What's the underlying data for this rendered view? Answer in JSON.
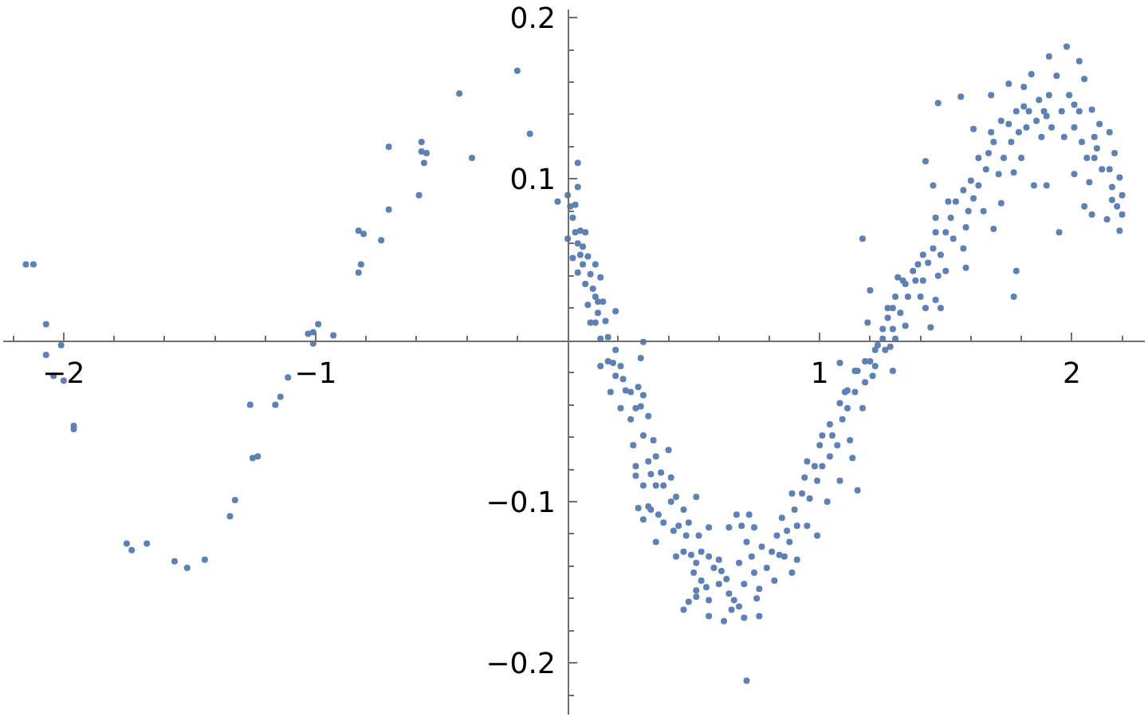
{
  "chart_data": {
    "type": "scatter",
    "color": "#5e81b5",
    "marker": "circle",
    "grid": false,
    "xlim": [
      -2.24,
      2.29
    ],
    "ylim": [
      -0.232,
      0.205
    ],
    "xticks": [
      {
        "value": -2.2,
        "label": null
      },
      {
        "value": -2,
        "label": "−2"
      },
      {
        "value": -1.8,
        "label": null
      },
      {
        "value": -1.6,
        "label": null
      },
      {
        "value": -1.4,
        "label": null
      },
      {
        "value": -1.2,
        "label": null
      },
      {
        "value": -1,
        "label": "−1"
      },
      {
        "value": -0.8,
        "label": null
      },
      {
        "value": -0.6,
        "label": null
      },
      {
        "value": -0.4,
        "label": null
      },
      {
        "value": -0.2,
        "label": null
      },
      {
        "value": 0.2,
        "label": null
      },
      {
        "value": 0.4,
        "label": null
      },
      {
        "value": 0.6,
        "label": null
      },
      {
        "value": 0.8,
        "label": null
      },
      1,
      {
        "value": 1.2,
        "label": null
      },
      {
        "value": 1.4,
        "label": null
      },
      {
        "value": 1.6,
        "label": null
      },
      {
        "value": 1.8,
        "label": null
      },
      2,
      {
        "value": 2.2,
        "label": null
      }
    ],
    "yticks": [
      {
        "value": -0.22,
        "label": null
      },
      {
        "value": -0.2,
        "label": "−0.2"
      },
      {
        "value": -0.18,
        "label": null
      },
      {
        "value": -0.16,
        "label": null
      },
      {
        "value": -0.14,
        "label": null
      },
      {
        "value": -0.12,
        "label": null
      },
      {
        "value": -0.1,
        "label": "−0.1"
      },
      {
        "value": -0.08,
        "label": null
      },
      {
        "value": -0.06,
        "label": null
      },
      {
        "value": -0.04,
        "label": null
      },
      {
        "value": -0.02,
        "label": null
      },
      {
        "value": 0.02,
        "label": null
      },
      {
        "value": 0.04,
        "label": null
      },
      {
        "value": 0.06,
        "label": null
      },
      {
        "value": 0.08,
        "label": null
      },
      0.1,
      {
        "value": 0.12,
        "label": null
      },
      {
        "value": 0.14,
        "label": null
      },
      {
        "value": 0.16,
        "label": null
      },
      {
        "value": 0.18,
        "label": null
      },
      0.2
    ],
    "x": [
      -2.15,
      -2.12,
      -2.07,
      -2.07,
      -2.01,
      -2.04,
      -2.0,
      -1.96,
      -1.96,
      -1.75,
      -1.73,
      -1.67,
      -1.56,
      -1.51,
      -1.44,
      -1.34,
      -1.32,
      -1.25,
      -1.23,
      -1.26,
      -1.16,
      -1.14,
      -1.11,
      -1.03,
      -1.01,
      -0.99,
      -1.01,
      -0.93,
      -0.83,
      -0.81,
      -0.74,
      -0.82,
      -0.83,
      -0.2,
      -0.43,
      -0.15,
      -0.71,
      -0.58,
      -0.58,
      -0.56,
      -0.57,
      -0.38,
      -0.59,
      -0.71,
      -0.04,
      0.0,
      0.04,
      0.04,
      0.01,
      0.03,
      0.02,
      0.0,
      0.03,
      0.05,
      0.07,
      0.04,
      0.06,
      0.02,
      0.05,
      0.08,
      0.04,
      0.09,
      0.11,
      0.13,
      0.07,
      0.1,
      0.08,
      0.12,
      0.14,
      0.09,
      0.11,
      0.15,
      0.19,
      0.13,
      0.16,
      0.3,
      0.19,
      0.29,
      0.13,
      0.16,
      0.18,
      0.21,
      0.19,
      0.17,
      0.22,
      0.23,
      0.21,
      0.25,
      0.28,
      0.3,
      0.29,
      0.25,
      0.27,
      0.32,
      0.26,
      0.3,
      0.34,
      0.4,
      0.27,
      0.32,
      0.35,
      0.27,
      0.33,
      0.37,
      0.3,
      0.35,
      0.38,
      0.28,
      0.3,
      0.32,
      0.35,
      0.36,
      0.41,
      0.43,
      0.46,
      0.42,
      0.44,
      0.48,
      0.51,
      0.43,
      0.46,
      0.49,
      0.53,
      0.56,
      0.51,
      0.56,
      0.58,
      0.5,
      0.53,
      0.55,
      0.51,
      0.46,
      0.48,
      0.51,
      0.56,
      0.56,
      0.62,
      0.61,
      0.63,
      0.64,
      0.67,
      0.64,
      0.66,
      0.68,
      0.65,
      0.7,
      0.71,
      0.7,
      0.72,
      0.69,
      0.71,
      0.73,
      0.74,
      0.76,
      0.75,
      0.76,
      0.74,
      0.77,
      0.81,
      0.82,
      0.83,
      0.85,
      0.86,
      0.87,
      0.89,
      0.9,
      0.91,
      0.91,
      0.93,
      0.95,
      0.96,
      0.99,
      0.99,
      0.95,
      1.01,
      1.0,
      1.03,
      1.04,
      1.05,
      1.07,
      1.08,
      1.09,
      1.11,
      1.1,
      1.08,
      1.12,
      1.13,
      1.15,
      1.14,
      1.15,
      1.17,
      1.17,
      1.18,
      1.19,
      1.2,
      1.2,
      1.21,
      1.22,
      1.23,
      1.25,
      1.26,
      1.28,
      1.29,
      1.3,
      1.29,
      1.27,
      1.29,
      1.3,
      1.32,
      1.31,
      1.34,
      1.35,
      1.34,
      1.38,
      1.39,
      1.4,
      1.42,
      1.44,
      1.41,
      1.43,
      1.42,
      1.45,
      1.46,
      1.47,
      1.48,
      1.46,
      1.45,
      1.48,
      1.5,
      1.5,
      1.52,
      1.53,
      1.54,
      1.57,
      1.58,
      1.58,
      1.59,
      1.56,
      1.47,
      1.61,
      1.6,
      1.63,
      1.65,
      1.66,
      1.67,
      1.61,
      1.68,
      1.69,
      1.69,
      1.71,
      1.72,
      1.73,
      1.75,
      1.75,
      1.76,
      1.77,
      1.77,
      1.78,
      1.78,
      1.79,
      1.8,
      1.81,
      1.82,
      1.83,
      1.84,
      1.85,
      1.86,
      1.87,
      1.88,
      1.89,
      1.9,
      1.91,
      1.91,
      1.92,
      1.94,
      1.95,
      1.96,
      1.97,
      1.98,
      1.99,
      2.01,
      2.01,
      2.03,
      2.03,
      2.04,
      2.05,
      2.05,
      2.06,
      2.07,
      2.08,
      2.08,
      2.09,
      2.1,
      2.11,
      2.12,
      2.14,
      2.15,
      2.15,
      2.16,
      2.17,
      2.18,
      2.19,
      2.19,
      2.2,
      2.2,
      0.41,
      0.33,
      0.38,
      0.47,
      0.52,
      0.6,
      0.6,
      0.68,
      0.79,
      0.84,
      0.88,
      0.89,
      0.94,
      0.98,
      1.01,
      1.04,
      1.08,
      1.11,
      1.14,
      1.18,
      1.22,
      1.25,
      1.27,
      1.33,
      1.37,
      1.41,
      1.46,
      1.51,
      1.57,
      1.63,
      1.68,
      1.72,
      1.81,
      1.9,
      2.01,
      2.09,
      2.16,
      0.06,
      0.11,
      0.12
    ],
    "values": [
      0.047,
      0.047,
      0.01,
      -0.009,
      -0.003,
      -0.022,
      -0.025,
      -0.053,
      -0.055,
      -0.126,
      -0.13,
      -0.126,
      -0.137,
      -0.141,
      -0.136,
      -0.109,
      -0.099,
      -0.073,
      -0.072,
      -0.04,
      -0.04,
      -0.035,
      -0.023,
      0.004,
      0.005,
      0.01,
      -0.002,
      0.003,
      0.068,
      0.066,
      0.062,
      0.047,
      0.042,
      0.167,
      0.153,
      0.128,
      0.12,
      0.123,
      0.117,
      0.116,
      0.11,
      0.113,
      0.09,
      0.081,
      0.086,
      0.09,
      0.11,
      0.095,
      0.083,
      0.084,
      0.076,
      0.063,
      0.067,
      0.068,
      0.067,
      0.06,
      0.058,
      0.051,
      0.053,
      0.052,
      0.042,
      0.041,
      0.047,
      0.039,
      0.035,
      0.032,
      0.022,
      0.024,
      0.024,
      0.011,
      0.011,
      0.012,
      0.018,
      0.001,
      0.002,
      -0.001,
      -0.006,
      -0.011,
      -0.016,
      -0.013,
      -0.014,
      -0.016,
      -0.022,
      -0.032,
      -0.024,
      -0.031,
      -0.042,
      -0.032,
      -0.029,
      -0.034,
      -0.041,
      -0.049,
      -0.042,
      -0.047,
      -0.065,
      -0.059,
      -0.062,
      -0.068,
      -0.078,
      -0.075,
      -0.072,
      -0.084,
      -0.083,
      -0.082,
      -0.09,
      -0.09,
      -0.09,
      -0.104,
      -0.111,
      -0.103,
      -0.125,
      -0.108,
      -0.1,
      -0.097,
      -0.105,
      -0.118,
      -0.115,
      -0.113,
      -0.097,
      -0.134,
      -0.131,
      -0.133,
      -0.131,
      -0.116,
      -0.138,
      -0.134,
      -0.141,
      -0.144,
      -0.149,
      -0.153,
      -0.155,
      -0.167,
      -0.162,
      -0.159,
      -0.161,
      -0.171,
      -0.174,
      -0.143,
      -0.148,
      -0.116,
      -0.108,
      -0.157,
      -0.161,
      -0.165,
      -0.167,
      -0.172,
      -0.211,
      -0.151,
      -0.108,
      -0.115,
      -0.125,
      -0.134,
      -0.144,
      -0.171,
      -0.16,
      -0.154,
      -0.116,
      -0.128,
      -0.131,
      -0.149,
      -0.121,
      -0.11,
      -0.134,
      -0.118,
      -0.144,
      -0.105,
      -0.115,
      -0.136,
      -0.095,
      -0.115,
      -0.098,
      -0.121,
      -0.087,
      -0.075,
      -0.078,
      -0.065,
      -0.1,
      -0.072,
      -0.059,
      -0.065,
      -0.087,
      -0.049,
      -0.042,
      -0.032,
      -0.014,
      -0.062,
      -0.073,
      -0.093,
      -0.032,
      -0.019,
      -0.042,
      0.063,
      -0.026,
      0.011,
      0.031,
      -0.013,
      -0.022,
      -0.016,
      -0.003,
      0.001,
      -0.006,
      -0.004,
      -0.019,
      0.001,
      0.007,
      0.014,
      0.02,
      0.027,
      0.017,
      0.039,
      0.009,
      0.027,
      0.035,
      0.037,
      0.047,
      0.027,
      0.02,
      0.008,
      0.037,
      0.048,
      0.111,
      0.096,
      0.025,
      0.04,
      0.02,
      0.067,
      0.057,
      0.053,
      0.043,
      0.067,
      0.076,
      0.063,
      0.086,
      0.057,
      0.07,
      0.045,
      0.08,
      0.151,
      0.147,
      0.088,
      0.099,
      0.096,
      0.08,
      0.106,
      0.116,
      0.131,
      0.152,
      0.069,
      0.123,
      0.103,
      0.085,
      0.113,
      0.134,
      0.159,
      0.123,
      0.104,
      0.027,
      0.043,
      0.142,
      0.129,
      0.113,
      0.157,
      0.132,
      0.142,
      0.165,
      0.096,
      0.136,
      0.149,
      0.126,
      0.142,
      0.096,
      0.176,
      0.152,
      0.132,
      0.164,
      0.067,
      0.142,
      0.126,
      0.182,
      0.152,
      0.132,
      0.103,
      0.173,
      0.142,
      0.123,
      0.162,
      0.083,
      0.113,
      0.098,
      0.078,
      0.143,
      0.126,
      0.119,
      0.134,
      0.106,
      0.075,
      0.129,
      0.106,
      0.095,
      0.116,
      0.083,
      0.101,
      0.068,
      0.078,
      0.09,
      -0.085,
      -0.105,
      -0.113,
      -0.121,
      -0.121,
      -0.136,
      -0.151,
      -0.138,
      -0.141,
      -0.133,
      -0.125,
      -0.095,
      -0.085,
      -0.078,
      -0.059,
      -0.052,
      -0.039,
      -0.031,
      -0.019,
      -0.013,
      -0.006,
      0.007,
      0.02,
      0.037,
      0.043,
      0.053,
      0.076,
      0.086,
      0.093,
      0.113,
      0.129,
      0.136,
      0.145,
      0.139,
      0.146,
      0.113,
      0.087,
      0.047,
      0.027,
      0.017
    ]
  }
}
